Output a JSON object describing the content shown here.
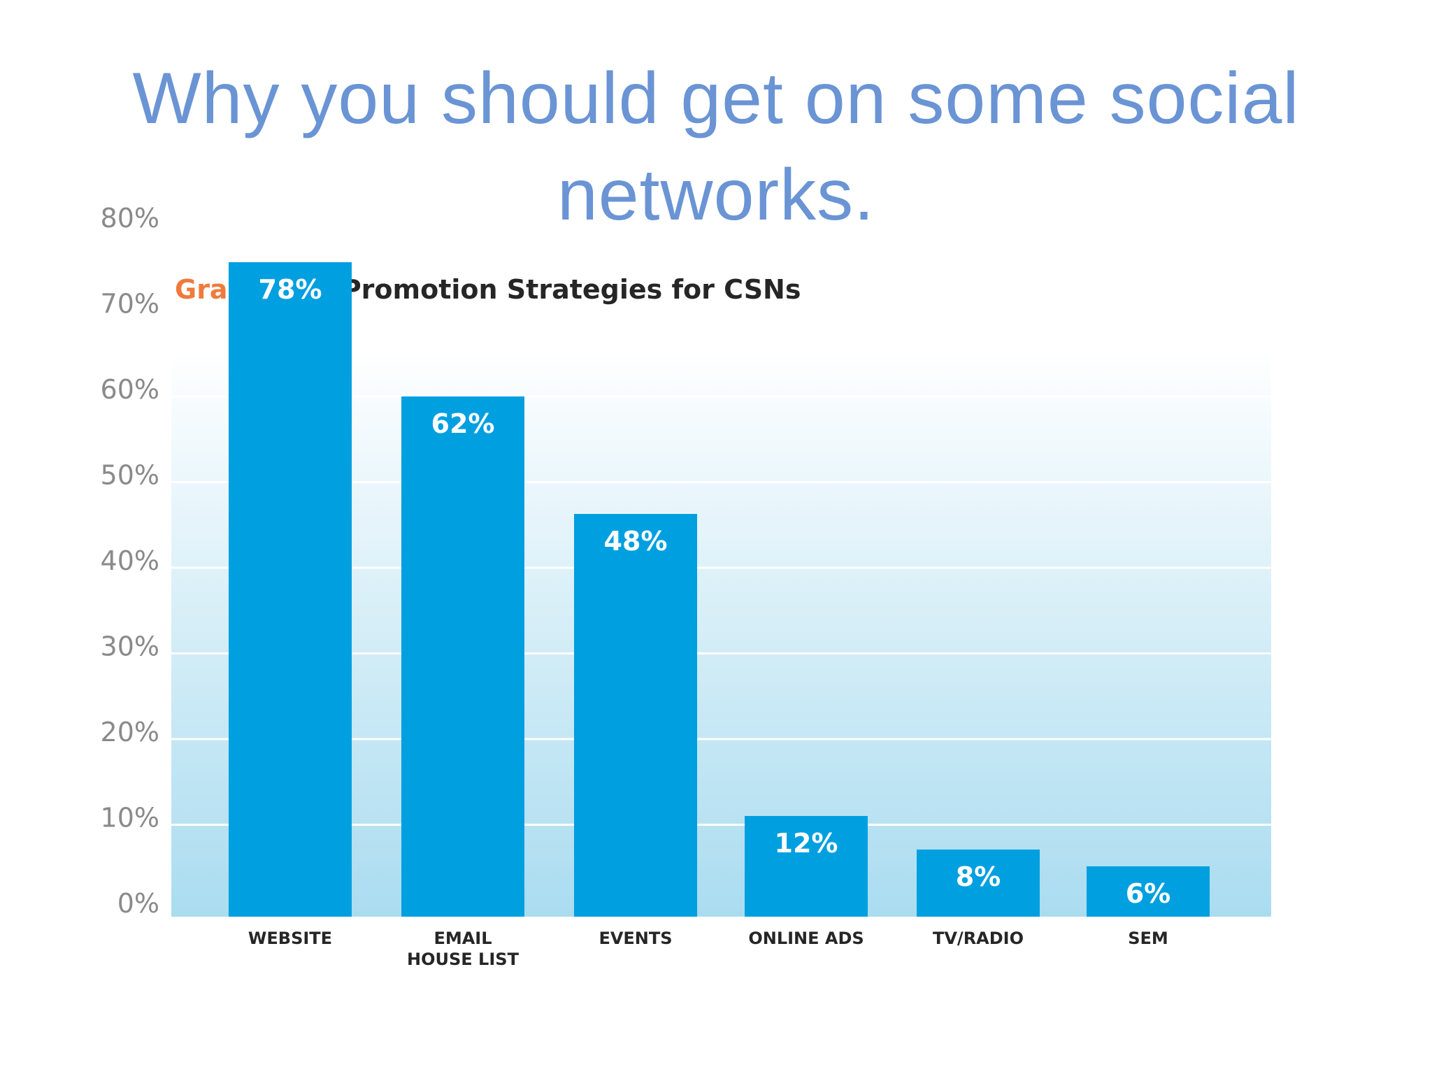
{
  "slide": {
    "title": "Why you should get on some social networks."
  },
  "caption": {
    "label": "Graph 2.4:",
    "title": "Promotion Strategies for CSNs"
  },
  "colors": {
    "title": "#6a94d4",
    "caption_label": "#f07a3c",
    "bar": "#009fe0",
    "plot_bg_top": "#ffffff",
    "plot_bg_bottom": "#aadcf0",
    "gridline": "#ffffff",
    "tick_text": "#8a8a8a",
    "category_text": "#262626"
  },
  "chart_data": {
    "type": "bar",
    "title": "Promotion Strategies for CSNs",
    "categories": [
      [
        "WEBSITE"
      ],
      [
        "EMAIL",
        "HOUSE LIST"
      ],
      [
        "EVENTS"
      ],
      [
        "ONLINE ADS"
      ],
      [
        "TV/RADIO"
      ],
      [
        "SEM"
      ]
    ],
    "values": [
      78,
      62,
      48,
      12,
      8,
      6
    ],
    "value_labels": [
      "78%",
      "62%",
      "48%",
      "12%",
      "8%",
      "6%"
    ],
    "ylim": [
      0,
      80
    ],
    "yticks": [
      0,
      10,
      20,
      30,
      40,
      50,
      60,
      70,
      80
    ],
    "ytick_labels": [
      "0%",
      "10%",
      "20%",
      "30%",
      "40%",
      "50%",
      "60%",
      "70%",
      "80%"
    ],
    "grid": true,
    "xlabel": "",
    "ylabel": ""
  }
}
